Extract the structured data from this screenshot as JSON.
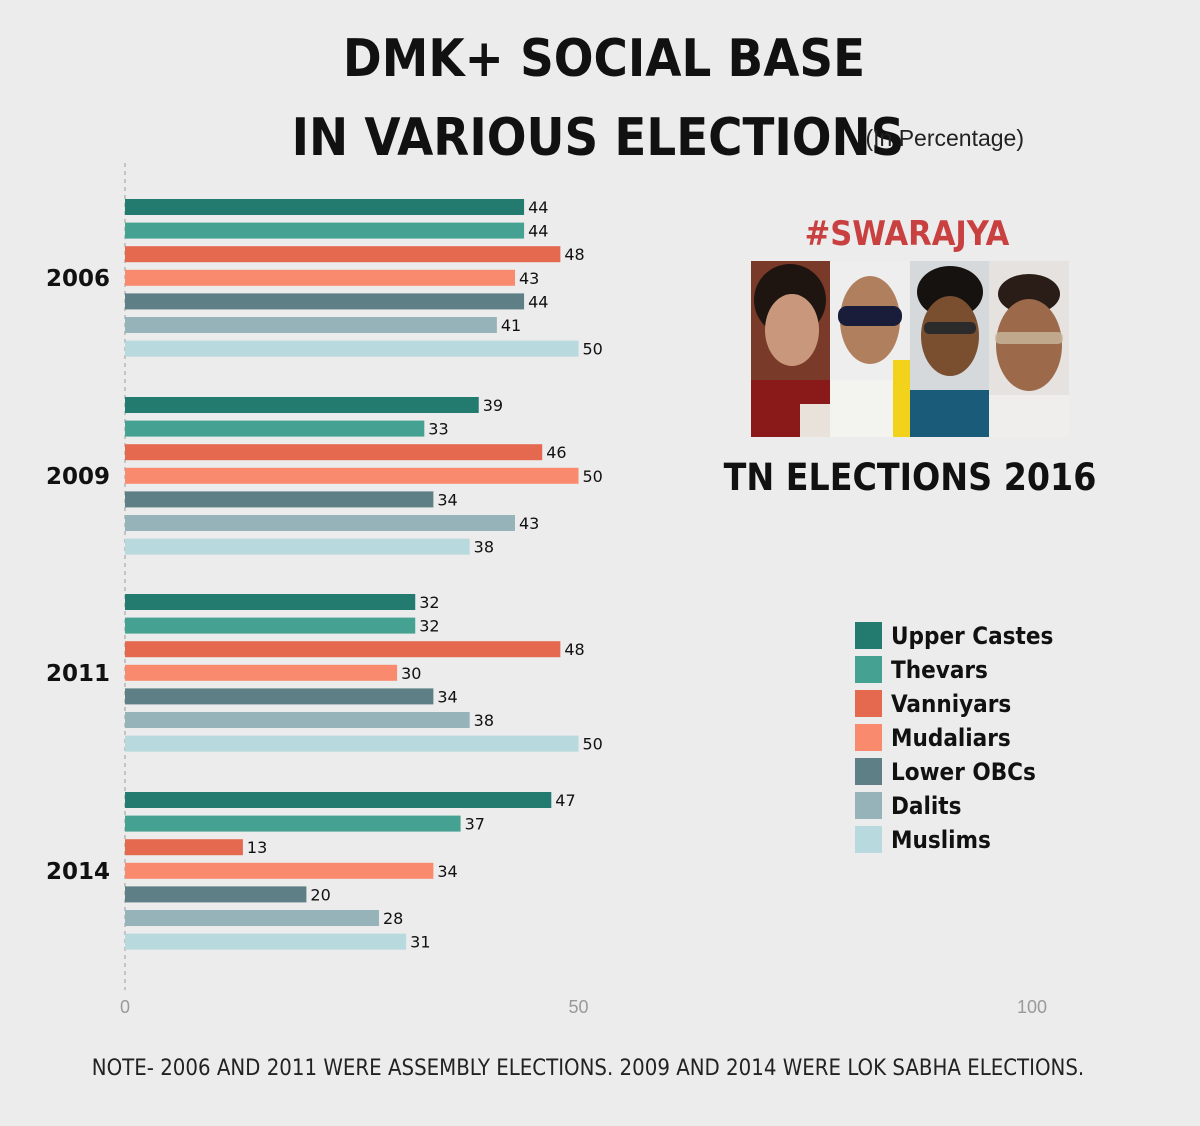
{
  "chart_data": {
    "type": "bar",
    "orientation": "horizontal",
    "title_line1": "DMK+ SOCIAL BASE",
    "title_line2": "IN VARIOUS ELECTIONS",
    "unit_note": "(In Percentage)",
    "categories": [
      "2006",
      "2009",
      "2011",
      "2014"
    ],
    "series": [
      {
        "name": "Upper Castes",
        "color": "#237a6e",
        "values": [
          44,
          39,
          32,
          47
        ]
      },
      {
        "name": "Thevars",
        "color": "#45a293",
        "values": [
          44,
          33,
          32,
          37
        ]
      },
      {
        "name": "Vanniyars",
        "color": "#e5694f",
        "values": [
          48,
          46,
          48,
          13
        ]
      },
      {
        "name": "Mudaliars",
        "color": "#fa8a6e",
        "values": [
          43,
          50,
          30,
          34
        ]
      },
      {
        "name": "Lower OBCs",
        "color": "#5e7f85",
        "values": [
          44,
          34,
          34,
          20
        ]
      },
      {
        "name": "Dalits",
        "color": "#95b3b8",
        "values": [
          41,
          43,
          38,
          28
        ]
      },
      {
        "name": "Muslims",
        "color": "#b8d9dd",
        "values": [
          50,
          38,
          50,
          31
        ]
      }
    ],
    "xlim": [
      0,
      100
    ],
    "xticks": [
      "0",
      "50",
      "100"
    ],
    "legend_position": "right",
    "grid": false
  },
  "brand": "#SWARAJYA",
  "subtitle": "TN ELECTIONS 2016",
  "note": "NOTE-  2006 AND 2011 WERE ASSEMBLY ELECTIONS. 2009 AND 2014 WERE LOK SABHA ELECTIONS.",
  "photo_panel": {
    "portraits": [
      "portrait-1",
      "portrait-2",
      "portrait-3",
      "portrait-4"
    ]
  }
}
